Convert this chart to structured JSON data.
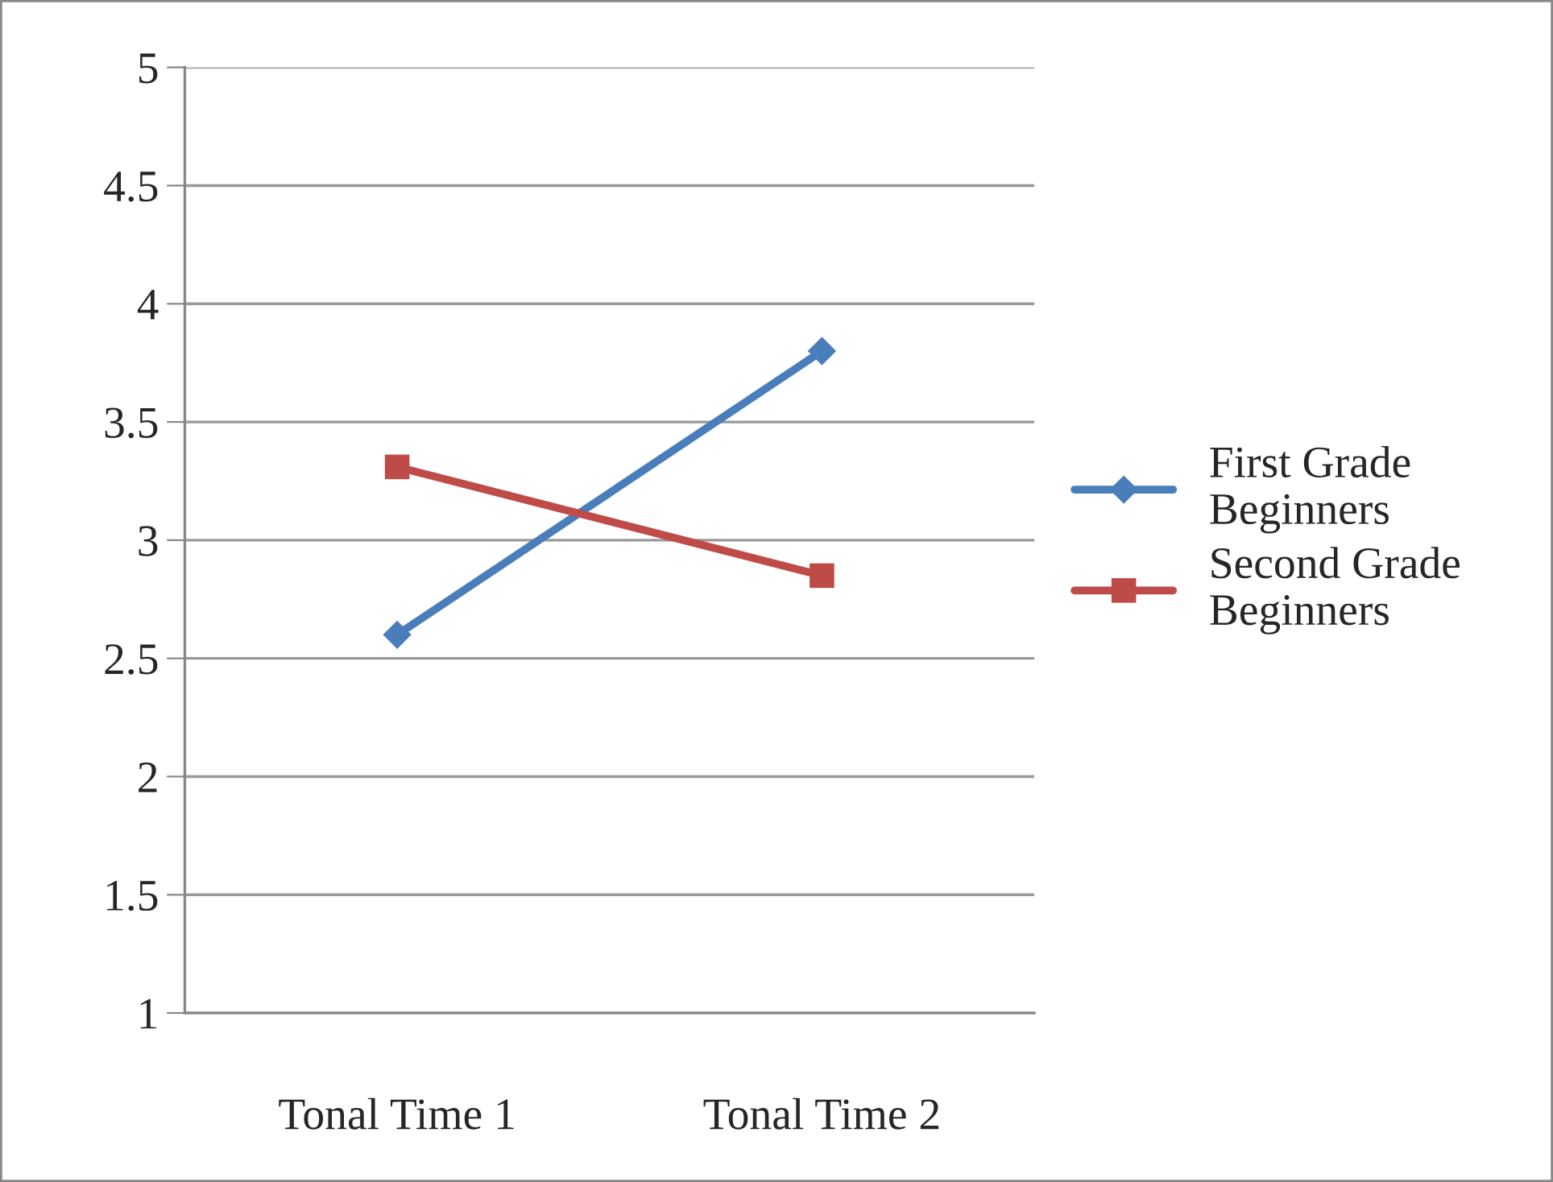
{
  "chart_data": {
    "type": "line",
    "categories": [
      "Tonal Time 1",
      "Tonal Time 2"
    ],
    "series": [
      {
        "name": "First Grade Beginners",
        "color": "#4a7ebb",
        "values": [
          2.6,
          3.8
        ],
        "marker": "diamond"
      },
      {
        "name": "Second Grade Beginners",
        "color": "#be4b48",
        "values": [
          3.31,
          2.85
        ],
        "marker": "square"
      }
    ],
    "ylim": [
      1,
      5
    ],
    "yticks": [
      1,
      1.5,
      2,
      2.5,
      3,
      3.5,
      4,
      4.5,
      5
    ],
    "grid": "y",
    "legend": "right",
    "line_style": "solid"
  }
}
